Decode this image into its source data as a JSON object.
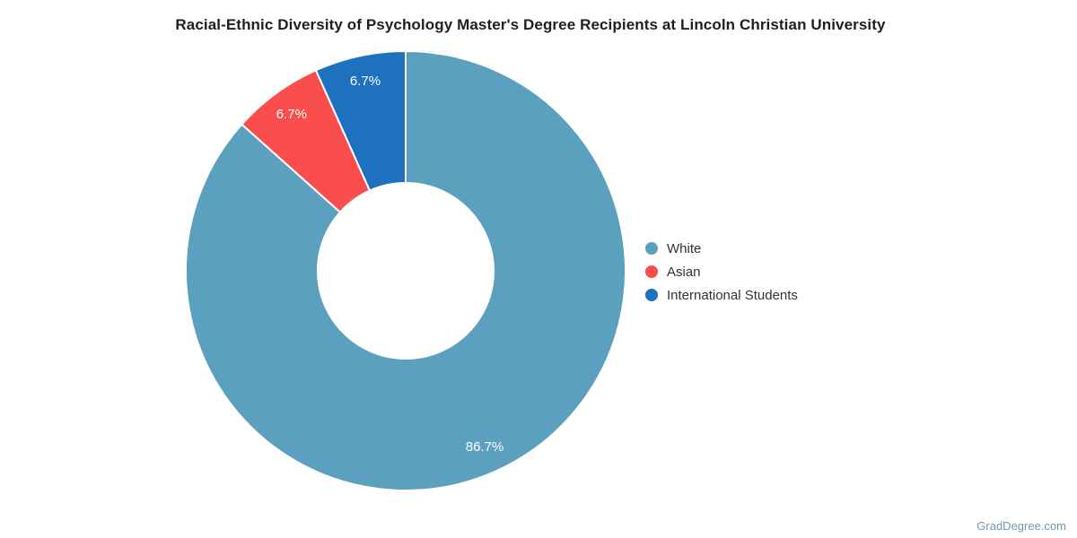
{
  "chart": {
    "title": "Racial-Ethnic Diversity of Psychology Master's Degree Recipients at Lincoln Christian University",
    "watermark": "GradDegree.com"
  },
  "chart_data": {
    "type": "pie",
    "subtype": "donut",
    "title": "Racial-Ethnic Diversity of Psychology Master's Degree Recipients at Lincoln Christian University",
    "categories": [
      "White",
      "Asian",
      "International Students"
    ],
    "values": [
      86.7,
      6.7,
      6.7
    ],
    "slice_labels": [
      "86.7%",
      "6.7%",
      "6.7%"
    ],
    "colors": [
      "#5ba0bf",
      "#fa4d4d",
      "#1d71be"
    ],
    "slice_border_color": "#ffffff",
    "label_text_color": "#ffffff",
    "legend": {
      "position": "right",
      "entries": [
        "White",
        "Asian",
        "International Students"
      ]
    },
    "start_angle_deg": 0,
    "direction": "clockwise",
    "inner_radius_ratio": 0.4
  }
}
